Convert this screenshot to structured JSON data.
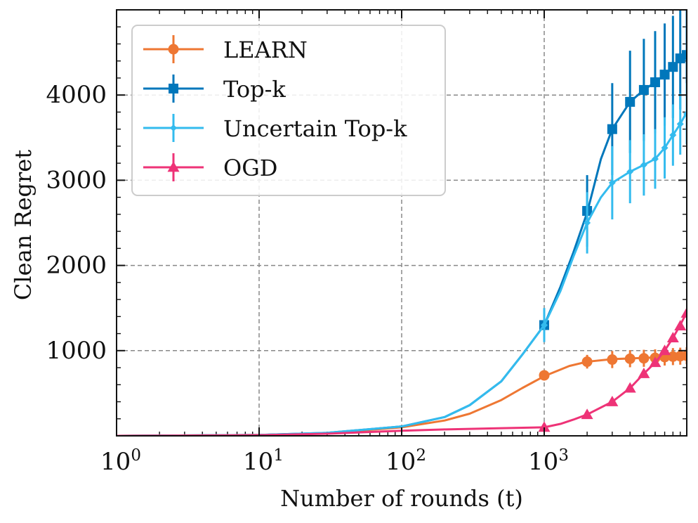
{
  "chart_data": {
    "type": "line",
    "xscale": "log",
    "xlim": [
      1,
      10000
    ],
    "ylim": [
      0,
      5000
    ],
    "xlabel": "Number of rounds (t)",
    "ylabel": "Clean Regret",
    "xtick_labels": [
      {
        "value": 1,
        "base": "10",
        "exp": "0"
      },
      {
        "value": 10,
        "base": "10",
        "exp": "1"
      },
      {
        "value": 100,
        "base": "10",
        "exp": "2"
      },
      {
        "value": 1000,
        "base": "10",
        "exp": "3"
      }
    ],
    "yticks": [
      1000,
      2000,
      3000,
      4000
    ],
    "grid": true,
    "legend_position": "top-left",
    "series": [
      {
        "name": "LEARN",
        "color": "#ee7733",
        "marker": "circle",
        "curve": [
          [
            1,
            0
          ],
          [
            10,
            10
          ],
          [
            30,
            30
          ],
          [
            100,
            100
          ],
          [
            200,
            180
          ],
          [
            300,
            260
          ],
          [
            500,
            420
          ],
          [
            700,
            560
          ],
          [
            1000,
            700
          ],
          [
            1500,
            820
          ],
          [
            2000,
            870
          ],
          [
            3000,
            900
          ],
          [
            5000,
            915
          ],
          [
            8000,
            930
          ],
          [
            10000,
            940
          ]
        ],
        "points": [
          [
            1000,
            710
          ],
          [
            2000,
            870
          ],
          [
            3000,
            895
          ],
          [
            4000,
            905
          ],
          [
            5000,
            910
          ],
          [
            6000,
            915
          ],
          [
            7000,
            925
          ],
          [
            8000,
            930
          ],
          [
            9000,
            935
          ],
          [
            10000,
            940
          ]
        ],
        "errors": [
          [
            1000,
            60
          ],
          [
            2000,
            80
          ],
          [
            3000,
            100
          ],
          [
            4000,
            100
          ],
          [
            5000,
            100
          ],
          [
            6000,
            100
          ],
          [
            7000,
            100
          ],
          [
            8000,
            100
          ],
          [
            9000,
            100
          ],
          [
            10000,
            100
          ]
        ]
      },
      {
        "name": "Top-k",
        "color": "#0077bb",
        "marker": "square",
        "curve": [
          [
            1,
            0
          ],
          [
            10,
            10
          ],
          [
            30,
            35
          ],
          [
            100,
            110
          ],
          [
            200,
            220
          ],
          [
            300,
            360
          ],
          [
            500,
            640
          ],
          [
            700,
            950
          ],
          [
            1000,
            1300
          ],
          [
            1300,
            1750
          ],
          [
            1600,
            2150
          ],
          [
            2000,
            2620
          ],
          [
            2500,
            3250
          ],
          [
            3000,
            3600
          ],
          [
            4000,
            3920
          ],
          [
            5000,
            4060
          ],
          [
            6000,
            4150
          ],
          [
            7000,
            4240
          ],
          [
            8000,
            4340
          ],
          [
            9000,
            4430
          ],
          [
            10000,
            4480
          ]
        ],
        "points": [
          [
            1000,
            1300
          ],
          [
            2000,
            2640
          ],
          [
            3000,
            3600
          ],
          [
            4000,
            3920
          ],
          [
            5000,
            4060
          ],
          [
            6000,
            4150
          ],
          [
            7000,
            4240
          ],
          [
            8000,
            4330
          ],
          [
            9000,
            4430
          ],
          [
            10000,
            4470
          ]
        ],
        "errors": [
          [
            1000,
            120
          ],
          [
            2000,
            420
          ],
          [
            3000,
            540
          ],
          [
            4000,
            600
          ],
          [
            5000,
            600
          ],
          [
            6000,
            600
          ],
          [
            7000,
            600
          ],
          [
            8000,
            600
          ],
          [
            9000,
            600
          ],
          [
            10000,
            600
          ]
        ]
      },
      {
        "name": "Uncertain Top-k",
        "color": "#33bbee",
        "marker": "diamond",
        "curve": [
          [
            1,
            0
          ],
          [
            10,
            10
          ],
          [
            30,
            35
          ],
          [
            100,
            110
          ],
          [
            200,
            220
          ],
          [
            300,
            360
          ],
          [
            500,
            640
          ],
          [
            700,
            950
          ],
          [
            1000,
            1300
          ],
          [
            1300,
            1700
          ],
          [
            1600,
            2100
          ],
          [
            2000,
            2500
          ],
          [
            2500,
            2800
          ],
          [
            3000,
            2970
          ],
          [
            4000,
            3100
          ],
          [
            5000,
            3180
          ],
          [
            6000,
            3250
          ],
          [
            7000,
            3380
          ],
          [
            8000,
            3530
          ],
          [
            9000,
            3660
          ],
          [
            10000,
            3800
          ]
        ],
        "points": [
          [
            1000,
            1300
          ],
          [
            2000,
            2500
          ],
          [
            3000,
            2970
          ],
          [
            4000,
            3100
          ],
          [
            5000,
            3180
          ],
          [
            6000,
            3250
          ],
          [
            7000,
            3380
          ],
          [
            8000,
            3530
          ],
          [
            9000,
            3660
          ],
          [
            10000,
            3780
          ]
        ],
        "errors": [
          [
            1000,
            200
          ],
          [
            2000,
            360
          ],
          [
            3000,
            430
          ],
          [
            4000,
            370
          ],
          [
            5000,
            360
          ],
          [
            6000,
            350
          ],
          [
            7000,
            360
          ],
          [
            8000,
            360
          ],
          [
            9000,
            360
          ],
          [
            10000,
            360
          ]
        ]
      },
      {
        "name": "OGD",
        "color": "#ee3377",
        "marker": "triangle",
        "curve": [
          [
            1,
            0
          ],
          [
            10,
            8
          ],
          [
            30,
            25
          ],
          [
            100,
            60
          ],
          [
            200,
            75
          ],
          [
            500,
            90
          ],
          [
            1000,
            100
          ],
          [
            1300,
            140
          ],
          [
            1600,
            190
          ],
          [
            2000,
            250
          ],
          [
            3000,
            400
          ],
          [
            4000,
            560
          ],
          [
            5000,
            730
          ],
          [
            6000,
            860
          ],
          [
            7000,
            1000
          ],
          [
            8000,
            1150
          ],
          [
            9000,
            1300
          ],
          [
            10000,
            1450
          ]
        ],
        "points": [
          [
            1000,
            100
          ],
          [
            2000,
            250
          ],
          [
            3000,
            400
          ],
          [
            4000,
            560
          ],
          [
            5000,
            730
          ],
          [
            6000,
            860
          ],
          [
            7000,
            1000
          ],
          [
            8000,
            1150
          ],
          [
            9000,
            1290
          ],
          [
            10000,
            1440
          ]
        ],
        "errors": [
          [
            1000,
            20
          ],
          [
            2000,
            30
          ],
          [
            3000,
            30
          ],
          [
            4000,
            30
          ],
          [
            5000,
            30
          ],
          [
            6000,
            40
          ],
          [
            7000,
            40
          ],
          [
            8000,
            40
          ],
          [
            9000,
            40
          ],
          [
            10000,
            40
          ]
        ]
      }
    ]
  }
}
